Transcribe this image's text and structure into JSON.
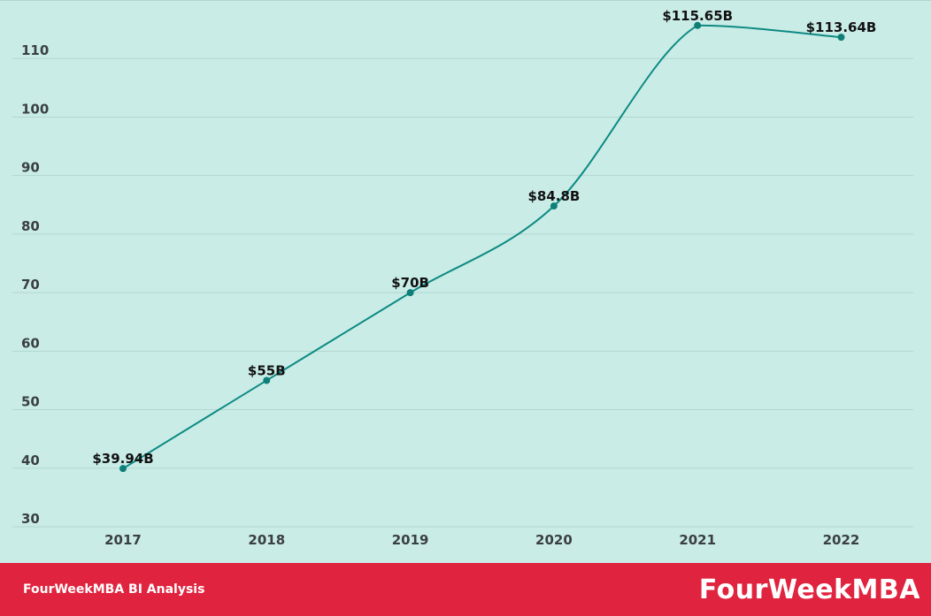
{
  "chart_data": {
    "type": "line",
    "title": "",
    "xlabel": "",
    "ylabel": "",
    "categories": [
      "2017",
      "2018",
      "2019",
      "2020",
      "2021",
      "2022"
    ],
    "values": [
      39.94,
      55,
      70,
      84.8,
      115.65,
      113.64
    ],
    "data_labels": [
      "$39.94B",
      "$55B",
      "$70B",
      "$84.8B",
      "$115.65B",
      "$113.64B"
    ],
    "yticks": [
      30,
      40,
      50,
      60,
      70,
      80,
      90,
      100,
      110
    ],
    "ylim": [
      30,
      120
    ],
    "grid": true,
    "legend": "none",
    "colors": {
      "background": "#c9ece7",
      "line": "#0d8a82",
      "marker": "#0d7f77",
      "grid": "#b2d6d1"
    }
  },
  "footer": {
    "caption": "FourWeekMBA BI Analysis",
    "brand": "FourWeekMBA",
    "color": "#e0243f"
  }
}
